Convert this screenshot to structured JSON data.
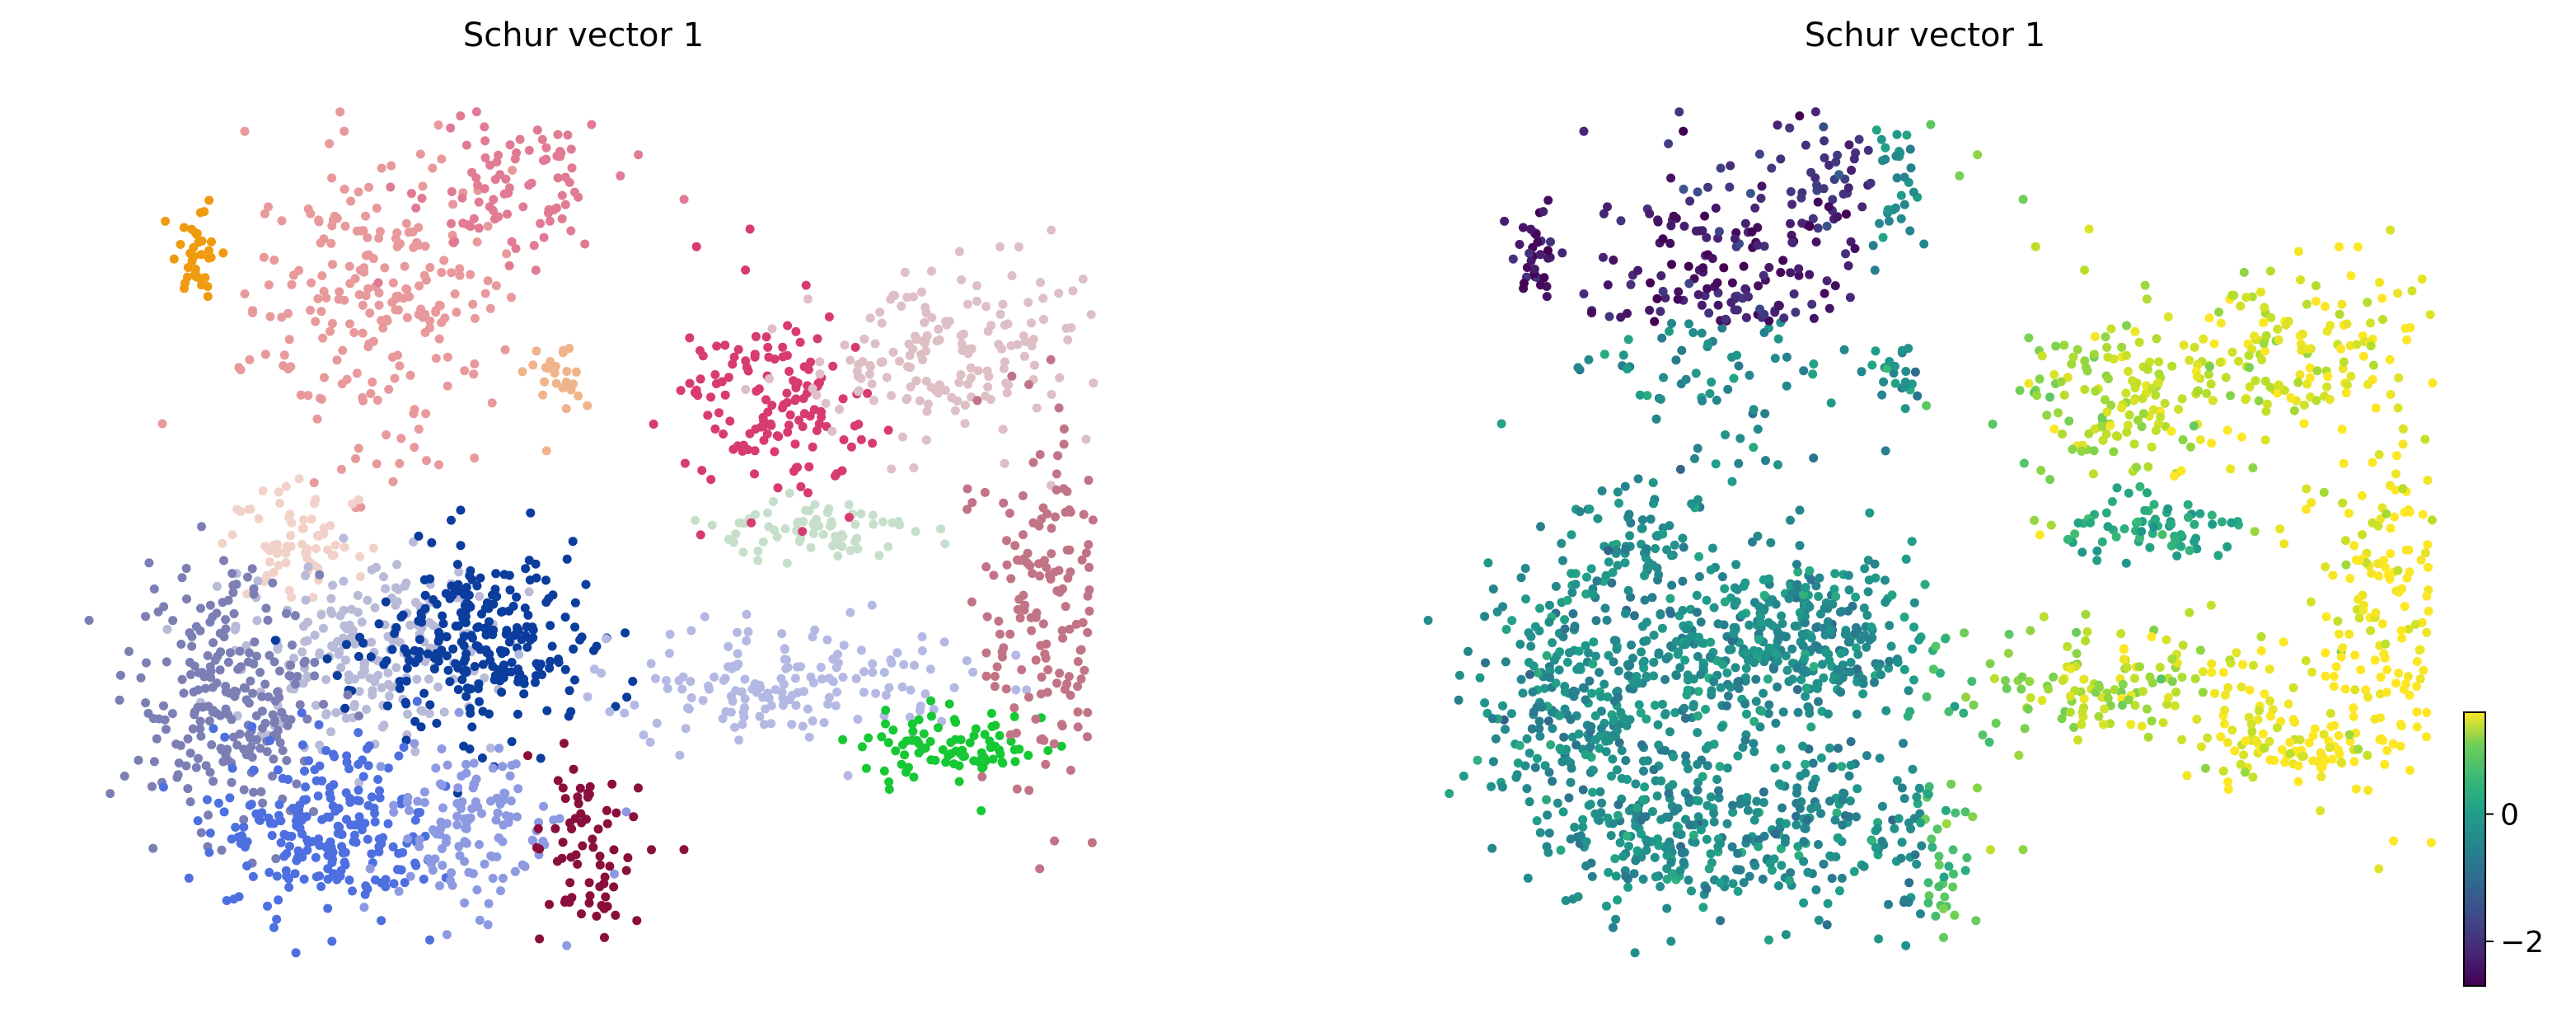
{
  "panels": [
    {
      "title": "Schur vector 1",
      "coloring": "categorical clusters"
    },
    {
      "title": "Schur vector 1",
      "coloring": "continuous (viridis)"
    }
  ],
  "colorbar": {
    "colormap": "viridis",
    "ticks": [
      {
        "value": -2,
        "label": "−2"
      },
      {
        "value": 0,
        "label": "0"
      }
    ],
    "range": [
      -2.7,
      1.6
    ]
  },
  "chart_data": [
    {
      "type": "scatter",
      "title": "Schur vector 1",
      "embedding": "2D, axes hidden",
      "legend": "none",
      "grid": false,
      "x_range": [
        0,
        100
      ],
      "y_range": [
        0,
        100
      ],
      "clusters": [
        {
          "color": "#e8999b",
          "cx": 30,
          "cy": 76,
          "sx": 7,
          "sy": 10,
          "n": 220
        },
        {
          "color": "#e07b93",
          "cx": 42,
          "cy": 90,
          "sx": 6,
          "sy": 5,
          "n": 90
        },
        {
          "color": "#f09a10",
          "cx": 12,
          "cy": 83,
          "sx": 1.2,
          "sy": 3,
          "n": 35
        },
        {
          "color": "#f0b48a",
          "cx": 47,
          "cy": 68,
          "sx": 1.5,
          "sy": 2.5,
          "n": 25
        },
        {
          "color": "#f2d2c8",
          "cx": 22,
          "cy": 48,
          "sx": 4,
          "sy": 4,
          "n": 70
        },
        {
          "color": "#b8bad8",
          "cx": 28,
          "cy": 36,
          "sx": 7,
          "sy": 6,
          "n": 220
        },
        {
          "color": "#0a3d9e",
          "cx": 40,
          "cy": 36,
          "sx": 6,
          "sy": 6,
          "n": 260
        },
        {
          "color": "#7b7fb4",
          "cx": 15,
          "cy": 30,
          "sx": 5,
          "sy": 8,
          "n": 230
        },
        {
          "color": "#4d6fe0",
          "cx": 25,
          "cy": 15,
          "sx": 6,
          "sy": 6,
          "n": 230
        },
        {
          "color": "#8d9ae2",
          "cx": 38,
          "cy": 15,
          "sx": 5,
          "sy": 6,
          "n": 130
        },
        {
          "color": "#8a0f3c",
          "cx": 50,
          "cy": 12,
          "sx": 3,
          "sy": 6,
          "n": 70
        },
        {
          "color": "#b4b9e4",
          "cx": 70,
          "cy": 32,
          "sx": 10,
          "sy": 4,
          "n": 160
        },
        {
          "color": "#16c834",
          "cx": 86,
          "cy": 24,
          "sx": 5,
          "sy": 2.5,
          "n": 90
        },
        {
          "color": "#c7dfca",
          "cx": 73,
          "cy": 50,
          "sx": 5,
          "sy": 1.8,
          "n": 70
        },
        {
          "color": "#d83b6e",
          "cx": 68,
          "cy": 64,
          "sx": 5,
          "sy": 7,
          "n": 140
        },
        {
          "color": "#ddbfc5",
          "cx": 85,
          "cy": 70,
          "sx": 8,
          "sy": 6,
          "n": 170
        },
        {
          "color": "#c27487",
          "cx": 95,
          "cy": 40,
          "sx": 3.5,
          "sy": 12,
          "n": 160
        }
      ]
    },
    {
      "type": "scatter",
      "title": "Schur vector 1",
      "embedding": "2D, axes hidden",
      "color_scale": "viridis",
      "color_range": [
        -2.7,
        1.6
      ],
      "grid": false,
      "x_range": [
        0,
        100
      ],
      "y_range": [
        0,
        100
      ],
      "regions": [
        {
          "name": "upper-left arm",
          "value": -2.3
        },
        {
          "name": "central/lower mass",
          "value": -0.6
        },
        {
          "name": "bridge",
          "value": 0.2
        },
        {
          "name": "inner cluster",
          "value": -0.1
        },
        {
          "name": "ring",
          "value": 1.1
        },
        {
          "name": "ring right/bottom",
          "value": 1.5
        }
      ]
    }
  ]
}
